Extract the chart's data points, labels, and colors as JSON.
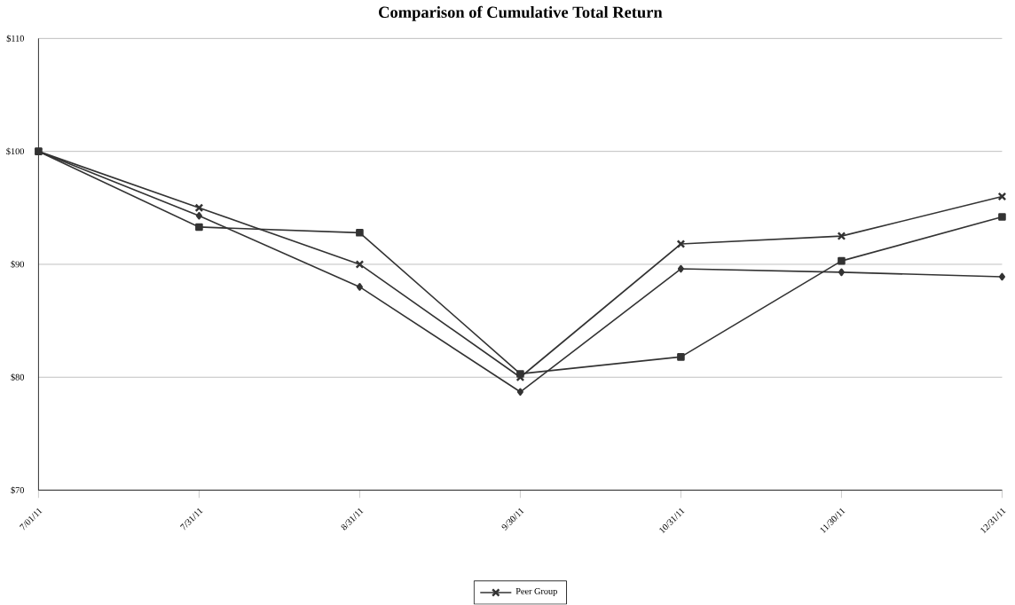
{
  "chart_data": {
    "type": "line",
    "title": "Comparison of Cumulative Total Return",
    "categories": [
      "7/01/11",
      "7/31/11",
      "8/31/11",
      "9/30/11",
      "10/31/11",
      "11/30/11",
      "12/31/11"
    ],
    "series": [
      {
        "color": "#333333",
        "marker": "square",
        "values": [
          100,
          93.3,
          92.8,
          80.3,
          81.8,
          90.3,
          94.2
        ]
      },
      {
        "color": "#333333",
        "marker": "diamond",
        "values": [
          100,
          94.3,
          88.0,
          78.7,
          89.6,
          89.3,
          88.9
        ]
      },
      {
        "name": "Peer Group",
        "color": "#333333",
        "marker": "cross",
        "values": [
          100,
          95.0,
          90.0,
          80.0,
          91.8,
          92.5,
          96.0
        ]
      }
    ],
    "ylim": [
      70,
      110
    ],
    "yticks": [
      {
        "value": 70,
        "label": "$70"
      },
      {
        "value": 80,
        "label": "$80"
      },
      {
        "value": 90,
        "label": "$90"
      },
      {
        "value": 100,
        "label": "$100"
      },
      {
        "value": 110,
        "label": "$110"
      }
    ],
    "grid": "y",
    "legend": "bottom",
    "line_style": "solid"
  }
}
